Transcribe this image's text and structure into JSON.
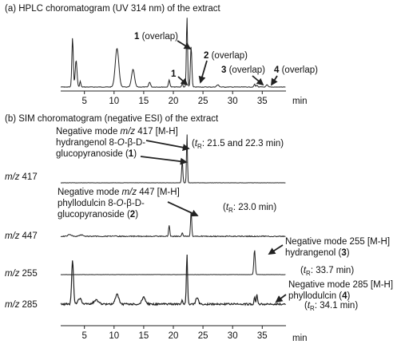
{
  "chart_data": [
    {
      "type": "line",
      "panel": "a",
      "title": "(a) HPLC choromatogram (UV 314 nm) of the extract",
      "xlabel": "min",
      "xlim": [
        1,
        39
      ],
      "x_ticks": [
        5,
        10,
        15,
        20,
        25,
        30,
        35
      ],
      "series": [
        {
          "peaks": [
            {
              "t": 3.0,
              "h": 0.7,
              "w": 0.12
            },
            {
              "t": 3.6,
              "h": 0.38,
              "w": 0.15
            },
            {
              "t": 4.3,
              "h": 0.08,
              "w": 0.1
            },
            {
              "t": 10.5,
              "h": 0.55,
              "w": 0.3
            },
            {
              "t": 13.2,
              "h": 0.25,
              "w": 0.25
            },
            {
              "t": 16.0,
              "h": 0.07,
              "w": 0.15
            },
            {
              "t": 19.3,
              "h": 0.1,
              "w": 0.12
            },
            {
              "t": 21.5,
              "h": 0.05,
              "w": 0.1
            },
            {
              "t": 22.3,
              "h": 1.0,
              "w": 0.1
            },
            {
              "t": 23.0,
              "h": 0.58,
              "w": 0.12
            },
            {
              "t": 27.5,
              "h": 0.03,
              "w": 0.2
            },
            {
              "t": 33.7,
              "h": 0.04,
              "w": 0.1
            },
            {
              "t": 34.1,
              "h": 0.03,
              "w": 0.1
            },
            {
              "t": 35.8,
              "h": 0.03,
              "w": 0.15
            }
          ]
        }
      ],
      "annotations": [
        {
          "num": "1",
          "text": " (overlap)"
        },
        {
          "num": "2",
          "text": " (overlap)"
        },
        {
          "num": "1",
          "text": ""
        },
        {
          "num": "3",
          "text": " (overlap)"
        },
        {
          "num": "4",
          "text": " (overlap)"
        }
      ]
    },
    {
      "type": "line",
      "panel": "b",
      "title": "(b) SIM choromatogram (negative ESI) of the extract",
      "xlabel": "min",
      "xlim": [
        1,
        39
      ],
      "x_ticks": [
        5,
        10,
        15,
        20,
        25,
        30,
        35
      ],
      "series": [
        {
          "name": "m/z 417",
          "mz_prefix": "m/z",
          "mz_value": "417",
          "peaks": [
            {
              "t": 21.5,
              "h": 0.45,
              "w": 0.1
            },
            {
              "t": 22.3,
              "h": 1.0,
              "w": 0.08
            }
          ]
        },
        {
          "name": "m/z 447",
          "mz_prefix": "m/z",
          "mz_value": "447",
          "peaks": [
            {
              "t": 2.5,
              "h": 0.04,
              "w": 0.3
            },
            {
              "t": 4.5,
              "h": 0.03,
              "w": 0.3
            },
            {
              "t": 19.3,
              "h": 0.25,
              "w": 0.1
            },
            {
              "t": 21.5,
              "h": 0.08,
              "w": 0.1
            },
            {
              "t": 23.0,
              "h": 0.55,
              "w": 0.1
            }
          ]
        },
        {
          "name": "m/z 255",
          "mz_prefix": "m/z",
          "mz_value": "255",
          "peaks": [
            {
              "t": 33.7,
              "h": 0.8,
              "w": 0.12
            }
          ]
        },
        {
          "name": "m/z 285",
          "mz_prefix": "m/z",
          "mz_value": "285",
          "peaks": [
            {
              "t": 3.0,
              "h": 0.8,
              "w": 0.15
            },
            {
              "t": 4.2,
              "h": 0.1,
              "w": 0.3
            },
            {
              "t": 7.0,
              "h": 0.07,
              "w": 0.4
            },
            {
              "t": 10.5,
              "h": 0.17,
              "w": 0.3
            },
            {
              "t": 15.0,
              "h": 0.12,
              "w": 0.3
            },
            {
              "t": 21.5,
              "h": 0.08,
              "w": 0.1
            },
            {
              "t": 22.3,
              "h": 0.9,
              "w": 0.1
            },
            {
              "t": 24.0,
              "h": 0.12,
              "w": 0.2
            },
            {
              "t": 33.7,
              "h": 0.12,
              "w": 0.1
            },
            {
              "t": 34.1,
              "h": 0.18,
              "w": 0.1
            }
          ]
        }
      ],
      "annotations": [
        {
          "lines": [
            [
              {
                "t": "Negative mode "
              },
              {
                "t": "m/z",
                "i": true
              },
              {
                "t": " 417 [M-H]"
              }
            ],
            [
              {
                "t": "hydrangenol 8-"
              },
              {
                "t": "O",
                "i": true
              },
              {
                "t": "-β-D-"
              }
            ],
            [
              {
                "t": "glucopyranoside ("
              },
              {
                "t": "1",
                "b": true
              },
              {
                "t": ")"
              }
            ]
          ]
        },
        {
          "lines": [
            [
              {
                "t": "Negative mode  "
              },
              {
                "t": "m/z",
                "i": true
              },
              {
                "t": " 447 [M-H]"
              }
            ],
            [
              {
                "t": "phyllodulcin 8-"
              },
              {
                "t": "O",
                "i": true
              },
              {
                "t": "-β-D-"
              }
            ],
            [
              {
                "t": "glucopyranoside ("
              },
              {
                "t": "2",
                "b": true
              },
              {
                "t": ")"
              }
            ]
          ]
        },
        {
          "lines": [
            [
              {
                "t": "Negative mode 255 [M-H]"
              }
            ],
            [
              {
                "t": "hydrangenol ("
              },
              {
                "t": "3",
                "b": true
              },
              {
                "t": ")"
              }
            ]
          ]
        },
        {
          "lines": [
            [
              {
                "t": "Negative mode 285 [M-H]"
              }
            ],
            [
              {
                "t": "phyllodulcin ("
              },
              {
                "t": "4",
                "b": true
              },
              {
                "t": ")"
              }
            ]
          ]
        }
      ],
      "retention_labels": [
        {
          "prefix": "(",
          "t": "t",
          "sub": "R",
          "rest": ": 21.5 and 22.3 min)"
        },
        {
          "prefix": "(",
          "t": "t",
          "sub": "R",
          "rest": ": 23.0 min)"
        },
        {
          "prefix": "(",
          "t": "t",
          "sub": "R",
          "rest": ": 33.7 min)"
        },
        {
          "prefix": "(",
          "t": "t",
          "sub": "R",
          "rest": ": 34.1 min)"
        }
      ]
    }
  ]
}
